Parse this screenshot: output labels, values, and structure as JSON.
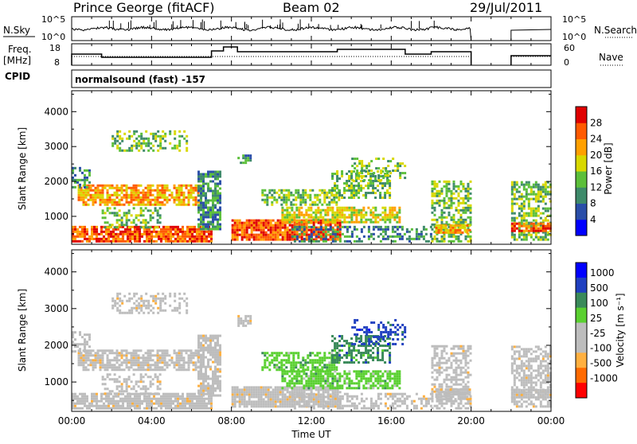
{
  "header": {
    "station": "Prince George (fitACF)",
    "beam": "Beam 02",
    "date": "29/Jul/2011"
  },
  "top_panel": {
    "left_label": "N.Sky",
    "left_ticks": [
      "10^5",
      "10^0"
    ],
    "right_ticks": [
      "10^5",
      "10^0"
    ],
    "right_label": "N.Search"
  },
  "freq_panel": {
    "left_label_1": "Freq.",
    "left_label_2": "[MHz]",
    "left_ticks": [
      "18",
      "8"
    ],
    "right_ticks": [
      "60",
      "0"
    ],
    "right_label": "Nave"
  },
  "cpid": {
    "label": "CPID",
    "value": "normalsound (fast) -157"
  },
  "colors": {
    "power": [
      "#0000ff",
      "#2a4ea8",
      "#3e8a6a",
      "#5cbf3a",
      "#d8d800",
      "#ffa000",
      "#ff5a00",
      "#e00000"
    ],
    "velocity": [
      "#ff0000",
      "#ff6a00",
      "#ffb040",
      "#bdbdbd",
      "#bdbdbd",
      "#5ad030",
      "#3a8a5a",
      "#2040c0",
      "#0000ff"
    ]
  },
  "chart_data": [
    {
      "type": "heatmap",
      "name": "power",
      "ylabel": "Slant Range [km]",
      "ylim": [
        200,
        4600
      ],
      "y_ticks": [
        "1000",
        "2000",
        "3000",
        "4000"
      ],
      "x_ticks": [
        "00:00",
        "04:00",
        "08:00",
        "12:00",
        "16:00",
        "20:00",
        "00:00"
      ],
      "colorbar_label": "Power [dB]",
      "colorbar_ticks": [
        "4",
        "8",
        "12",
        "16",
        "20",
        "24",
        "28"
      ]
    },
    {
      "type": "heatmap",
      "name": "velocity",
      "ylabel": "Slant Range [km]",
      "ylim": [
        200,
        4600
      ],
      "y_ticks": [
        "1000",
        "2000",
        "3000",
        "4000"
      ],
      "x_ticks": [
        "00:00",
        "04:00",
        "08:00",
        "12:00",
        "16:00",
        "20:00",
        "00:00"
      ],
      "xlabel": "Time UT",
      "colorbar_label": "Velocity [m s⁻¹]",
      "colorbar_ticks": [
        "1000",
        "500",
        "100",
        "25",
        "-25",
        "-100",
        "-500",
        "-1000"
      ]
    }
  ]
}
